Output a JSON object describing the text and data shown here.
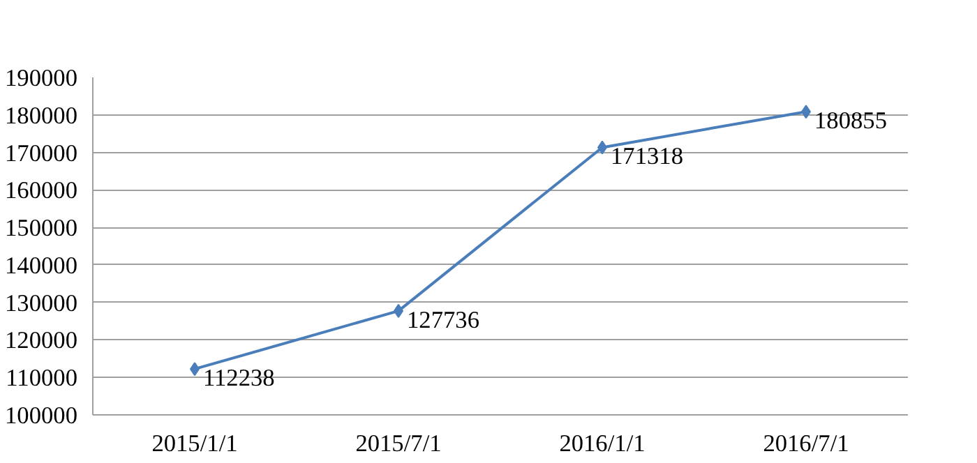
{
  "chart_data": {
    "type": "line",
    "categories": [
      "2015/1/1",
      "2015/7/1",
      "2016/1/1",
      "2016/7/1"
    ],
    "values": [
      112238,
      127736,
      171318,
      180855
    ],
    "color": "#4a7ebb",
    "ylim": [
      100000,
      190000
    ],
    "yticks": [
      100000,
      110000,
      120000,
      130000,
      140000,
      150000,
      160000,
      170000,
      180000,
      190000
    ],
    "grid": "y",
    "marker": "diamond",
    "data_labels": true
  }
}
